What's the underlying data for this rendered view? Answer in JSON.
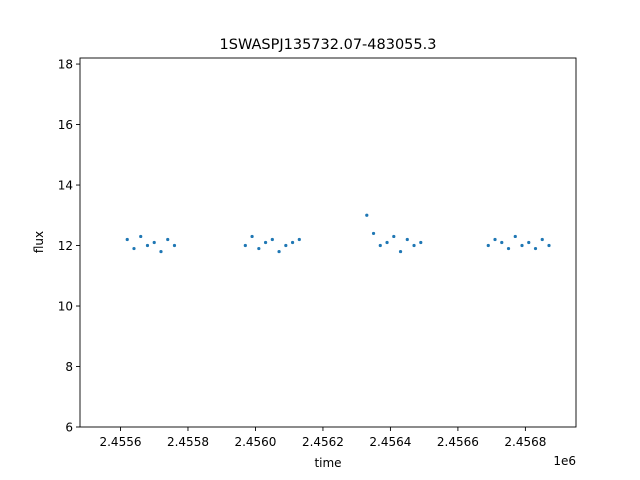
{
  "chart_data": {
    "type": "scatter",
    "title": "1SWASPJ135732.07-483055.3",
    "xlabel": "time",
    "ylabel": "flux",
    "x_offset_label": "1e6",
    "xlim": [
      2.45548,
      2.45695
    ],
    "ylim": [
      6.0,
      18.2
    ],
    "x_ticks": [
      {
        "value": 2.4556,
        "label": "2.4556"
      },
      {
        "value": 2.4558,
        "label": "2.4558"
      },
      {
        "value": 2.456,
        "label": "2.4560"
      },
      {
        "value": 2.4562,
        "label": "2.4562"
      },
      {
        "value": 2.4564,
        "label": "2.4564"
      },
      {
        "value": 2.4566,
        "label": "2.4566"
      },
      {
        "value": 2.4568,
        "label": "2.4568"
      }
    ],
    "y_ticks": [
      {
        "value": 6,
        "label": "6"
      },
      {
        "value": 8,
        "label": "8"
      },
      {
        "value": 10,
        "label": "10"
      },
      {
        "value": 12,
        "label": "12"
      },
      {
        "value": 14,
        "label": "14"
      },
      {
        "value": 16,
        "label": "16"
      },
      {
        "value": 18,
        "label": "18"
      }
    ],
    "grid": false,
    "legend": "none",
    "marker_color": "#1f77b4",
    "series": [
      {
        "x": [
          2.45562,
          2.45564,
          2.45566,
          2.45568,
          2.4557,
          2.45572,
          2.45574,
          2.45576,
          2.45597,
          2.45599,
          2.45601,
          2.45603,
          2.45605,
          2.45607,
          2.45609,
          2.45611,
          2.45613,
          2.45633,
          2.45635,
          2.45637,
          2.45639,
          2.45641,
          2.45643,
          2.45645,
          2.45647,
          2.45649,
          2.45669,
          2.45671,
          2.45673,
          2.45675,
          2.45677,
          2.45679,
          2.45681,
          2.45683,
          2.45685,
          2.45687
        ],
        "y": [
          12.2,
          11.9,
          12.3,
          12.0,
          12.1,
          11.8,
          12.2,
          12.0,
          12.0,
          12.3,
          11.9,
          12.1,
          12.2,
          11.8,
          12.0,
          12.1,
          12.2,
          13.0,
          12.4,
          12.0,
          12.1,
          12.3,
          11.8,
          12.2,
          12.0,
          12.1,
          12.0,
          12.2,
          12.1,
          11.9,
          12.3,
          12.0,
          12.1,
          11.9,
          12.2,
          12.0
        ]
      }
    ]
  }
}
